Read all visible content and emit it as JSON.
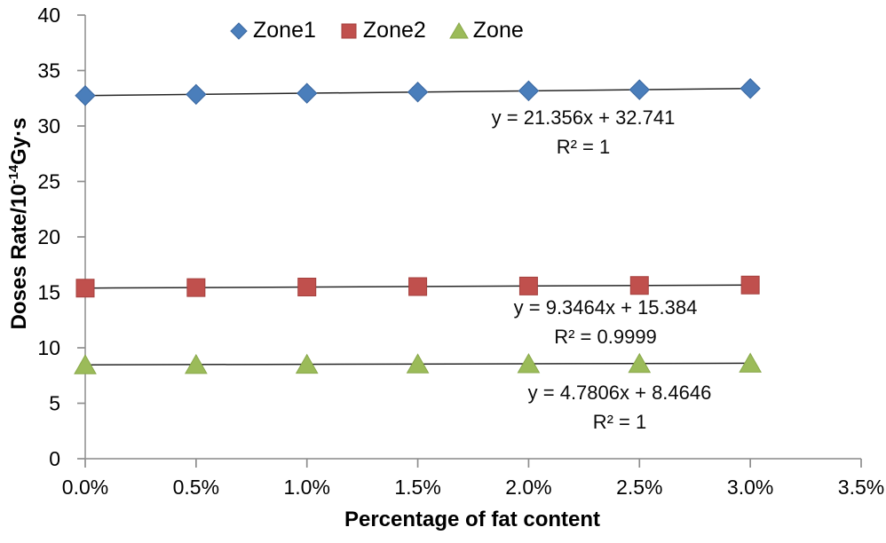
{
  "chart_data": {
    "type": "scatter",
    "title": "",
    "xlabel": "Percentage of fat content",
    "ylabel": {
      "pre": "Doses Rate/10",
      "sup": "-14",
      "post": "Gy·s"
    },
    "xlim": [
      0,
      0.035
    ],
    "ylim": [
      0,
      40
    ],
    "grid": false,
    "legend_position": "top-center",
    "axis_color": "#9a9a9a",
    "tick_color": "#8e8e8e",
    "trendline_color": "#262626",
    "x_values": [
      0,
      0.005,
      0.01,
      0.015,
      0.02,
      0.025,
      0.03
    ],
    "x_ticks": {
      "values": [
        0,
        0.005,
        0.01,
        0.015,
        0.02,
        0.025,
        0.03,
        0.035
      ],
      "labels": [
        "0.0%",
        "0.5%",
        "1.0%",
        "1.5%",
        "2.0%",
        "2.5%",
        "3.0%",
        "3.5%"
      ]
    },
    "y_ticks": {
      "values": [
        0,
        5,
        10,
        15,
        20,
        25,
        30,
        35,
        40
      ],
      "labels": [
        "0",
        "5",
        "10",
        "15",
        "20",
        "25",
        "30",
        "35",
        "40"
      ]
    },
    "series": [
      {
        "name": "Zone1",
        "marker": "diamond",
        "color": "#4a7ebb",
        "edge": "#3a67a0",
        "values": [
          32.74,
          32.85,
          32.95,
          33.06,
          33.17,
          33.27,
          33.38
        ],
        "trendline": {
          "slope": 21.356,
          "intercept": 32.741
        },
        "equation": "y = 21.356x + 32.741",
        "r2": "R² = 1"
      },
      {
        "name": "Zone2",
        "marker": "square",
        "color": "#c0504d",
        "edge": "#a5413e",
        "values": [
          15.38,
          15.43,
          15.48,
          15.52,
          15.57,
          15.62,
          15.66
        ],
        "trendline": {
          "slope": 9.3464,
          "intercept": 15.384
        },
        "equation": "y = 9.3464x + 15.384",
        "r2": "R² = 0.9999"
      },
      {
        "name": "Zone",
        "marker": "triangle",
        "color": "#9bbb59",
        "edge": "#89a84b",
        "values": [
          8.46,
          8.49,
          8.51,
          8.54,
          8.56,
          8.58,
          8.61
        ],
        "trendline": {
          "slope": 4.7806,
          "intercept": 8.4646
        },
        "equation": "y = 4.7806x + 8.4646",
        "r2": "R² = 1"
      }
    ]
  }
}
